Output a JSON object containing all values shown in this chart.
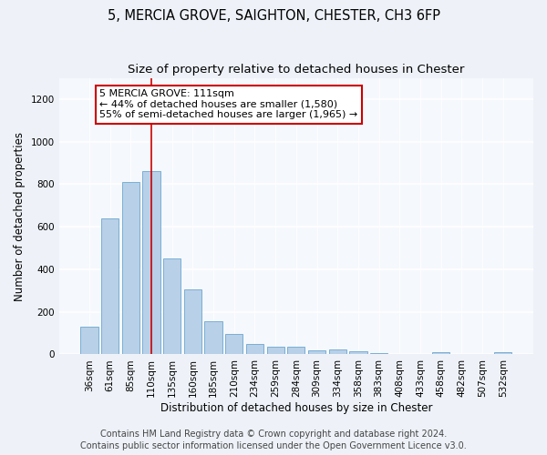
{
  "title1": "5, MERCIA GROVE, SAIGHTON, CHESTER, CH3 6FP",
  "title2": "Size of property relative to detached houses in Chester",
  "xlabel": "Distribution of detached houses by size in Chester",
  "ylabel": "Number of detached properties",
  "categories": [
    "36sqm",
    "61sqm",
    "85sqm",
    "110sqm",
    "135sqm",
    "160sqm",
    "185sqm",
    "210sqm",
    "234sqm",
    "259sqm",
    "284sqm",
    "309sqm",
    "334sqm",
    "358sqm",
    "383sqm",
    "408sqm",
    "433sqm",
    "458sqm",
    "482sqm",
    "507sqm",
    "532sqm"
  ],
  "values": [
    130,
    640,
    810,
    860,
    450,
    305,
    155,
    95,
    50,
    38,
    35,
    18,
    22,
    13,
    5,
    3,
    3,
    10,
    2,
    2,
    10
  ],
  "bar_color": "#b8d0e8",
  "bar_edgecolor": "#7aafd4",
  "vline_x_index": 3,
  "vline_color": "#cc0000",
  "annotation_line1": "5 MERCIA GROVE: 111sqm",
  "annotation_line2": "← 44% of detached houses are smaller (1,580)",
  "annotation_line3": "55% of semi-detached houses are larger (1,965) →",
  "annotation_box_edgecolor": "#cc0000",
  "annotation_box_facecolor": "#ffffff",
  "ylim": [
    0,
    1300
  ],
  "yticks": [
    0,
    200,
    400,
    600,
    800,
    1000,
    1200
  ],
  "footer1": "Contains HM Land Registry data © Crown copyright and database right 2024.",
  "footer2": "Contains public sector information licensed under the Open Government Licence v3.0.",
  "bg_color": "#eef2f8",
  "plot_bg_color": "#f5f8fc",
  "title1_fontsize": 10.5,
  "title2_fontsize": 9.5,
  "xlabel_fontsize": 8.5,
  "ylabel_fontsize": 8.5,
  "tick_fontsize": 7.5,
  "annotation_fontsize": 8,
  "footer_fontsize": 7
}
